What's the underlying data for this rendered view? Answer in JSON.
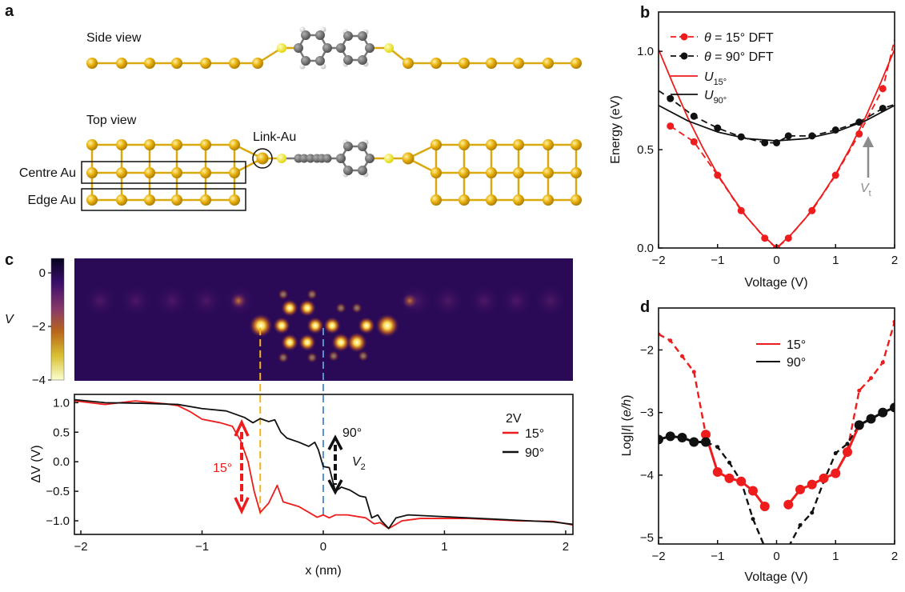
{
  "panel_labels": {
    "a": "a",
    "b": "b",
    "c": "c",
    "d": "d"
  },
  "panel_a": {
    "side_view": "Side view",
    "top_view": "Top view",
    "link_au": "Link-Au",
    "centre_au": "Centre Au",
    "edge_au": "Edge Au"
  },
  "colors": {
    "gold": "#e8b00c",
    "sulfur": "#f2ea2a",
    "carbon": "#6e6e6e",
    "hydrogen": "#e6e6e6",
    "red": "#ee1c1c",
    "black": "#111111",
    "orange_guide": "#f5b21a",
    "blue_guide": "#5b8fd0",
    "arrow_gray": "#8c8c8c"
  },
  "chart_data": [
    {
      "panel": "b",
      "type": "line",
      "xlabel": "Voltage (V)",
      "ylabel": "Energy (eV)",
      "xlim": [
        -2,
        2
      ],
      "ylim": [
        0,
        1.2
      ],
      "xticks": [
        {
          "v": -2,
          "t": "−2"
        },
        {
          "v": -1,
          "t": "−1"
        },
        {
          "v": 0,
          "t": "0"
        },
        {
          "v": 1,
          "t": "1"
        },
        {
          "v": 2,
          "t": "2"
        }
      ],
      "yticks": [
        {
          "v": 0,
          "t": "0.0"
        },
        {
          "v": 0.5,
          "t": "0.5"
        },
        {
          "v": 1,
          "t": "1.0"
        }
      ],
      "legend": [
        {
          "sym": "θ",
          "text": " = 15° DFT",
          "sub": ""
        },
        {
          "sym": "θ",
          "text": " = 90° DFT",
          "sub": ""
        },
        {
          "sym": "U",
          "text": "",
          "sub": "15°"
        },
        {
          "sym": "U",
          "text": "",
          "sub": "90°"
        }
      ],
      "series": [
        {
          "name": "θ = 15° DFT",
          "color": "#ee1c1c",
          "dash": true,
          "marker": 4.5,
          "x": [
            -1.8,
            -1.4,
            -1,
            -0.6,
            -0.2,
            0,
            0.2,
            0.6,
            1,
            1.4,
            1.8,
            2.0
          ],
          "y": [
            0.62,
            0.54,
            0.37,
            0.19,
            0.05,
            0,
            0.05,
            0.19,
            0.37,
            0.58,
            0.81,
            1.06
          ],
          "marker_skip_last": true
        },
        {
          "name": "θ = 90° DFT",
          "color": "#111111",
          "dash": true,
          "marker": 4.5,
          "x": [
            -2,
            -1.8,
            -1.4,
            -1,
            -0.6,
            -0.2,
            0,
            0.2,
            0.6,
            1,
            1.4,
            1.8,
            2.0
          ],
          "y": [
            0.8,
            0.76,
            0.67,
            0.61,
            0.565,
            0.535,
            0.535,
            0.57,
            0.57,
            0.6,
            0.64,
            0.71,
            0.73
          ],
          "marker_skip_first": true,
          "marker_skip_last": true
        },
        {
          "name": "U15°",
          "color": "#ee1c1c",
          "dash": false,
          "marker": 0,
          "x": [
            -2,
            -1.75,
            -1.5,
            -1.25,
            -1,
            -0.75,
            -0.5,
            -0.25,
            0,
            0.25,
            0.5,
            0.75,
            1,
            1.25,
            1.5,
            1.75,
            2
          ],
          "y": [
            1.01,
            0.83,
            0.66,
            0.51,
            0.375,
            0.26,
            0.155,
            0.07,
            0,
            0.07,
            0.155,
            0.26,
            0.375,
            0.51,
            0.66,
            0.83,
            1.01
          ]
        },
        {
          "name": "U90°",
          "color": "#111111",
          "dash": false,
          "marker": 0,
          "x": [
            -2,
            -1.5,
            -1,
            -0.5,
            0,
            0.5,
            1,
            1.5,
            2
          ],
          "y": [
            0.725,
            0.646,
            0.59,
            0.556,
            0.545,
            0.556,
            0.59,
            0.646,
            0.725
          ]
        }
      ],
      "annotation": {
        "sym": "V",
        "sub": "t",
        "x": 1.5,
        "y_from": 0.37,
        "y_to": 0.58
      }
    },
    {
      "panel": "c-colorbar",
      "type": "heatmap",
      "label": "V",
      "range": [
        0.54,
        -4.0
      ],
      "ticks": [
        {
          "v": 0,
          "t": "0"
        },
        {
          "v": -2,
          "t": "−2"
        },
        {
          "v": -4,
          "t": "−4"
        }
      ]
    },
    {
      "panel": "c",
      "type": "line",
      "xlabel": "x (nm)",
      "ylabel": "ΔV (V)",
      "xlim": [
        -2.053,
        2.06
      ],
      "ylim": [
        -1.23,
        1.14
      ],
      "xticks": [
        {
          "v": -2,
          "t": "−2"
        },
        {
          "v": -1,
          "t": "−1"
        },
        {
          "v": 0,
          "t": "0"
        },
        {
          "v": 1,
          "t": "1"
        },
        {
          "v": 2,
          "t": "2"
        }
      ],
      "yticks": [
        {
          "v": 1,
          "t": "1.0"
        },
        {
          "v": 0.5,
          "t": "0.5"
        },
        {
          "v": 0,
          "t": "0.0"
        },
        {
          "v": -0.5,
          "t": "−0.5"
        },
        {
          "v": -1,
          "t": "−1.0"
        }
      ],
      "legend_title": "2V",
      "legend": [
        {
          "text": "15°"
        },
        {
          "text": "90°"
        }
      ],
      "series": [
        {
          "name": "15°",
          "color": "#ee1c1c",
          "x": [
            -2.05,
            -1.8,
            -1.55,
            -1.3,
            -1.2,
            -1.1,
            -1.0,
            -0.85,
            -0.75,
            -0.68,
            -0.62,
            -0.57,
            -0.52,
            -0.45,
            -0.38,
            -0.33,
            -0.2,
            -0.05,
            0.0,
            0.05,
            0.1,
            0.2,
            0.35,
            0.42,
            0.47,
            0.54,
            0.65,
            0.8,
            1.2,
            1.6,
            1.9,
            2.06
          ],
          "y": [
            1.03,
            0.97,
            1.03,
            0.98,
            0.95,
            0.85,
            0.72,
            0.66,
            0.6,
            0.35,
            0.0,
            -0.5,
            -0.86,
            -0.7,
            -0.4,
            -0.68,
            -0.76,
            -0.94,
            -0.9,
            -0.95,
            -0.9,
            -0.9,
            -0.95,
            -1.05,
            -1.03,
            -1.13,
            -1.0,
            -0.96,
            -0.96,
            -1.0,
            -1.01,
            -1.07
          ]
        },
        {
          "name": "90°",
          "color": "#111111",
          "x": [
            -2.05,
            -1.8,
            -1.5,
            -1.2,
            -1.0,
            -0.8,
            -0.65,
            -0.58,
            -0.52,
            -0.45,
            -0.4,
            -0.35,
            -0.3,
            -0.2,
            -0.12,
            -0.07,
            -0.04,
            0.0,
            0.05,
            0.1,
            0.15,
            0.22,
            0.3,
            0.35,
            0.4,
            0.45,
            0.48,
            0.54,
            0.6,
            0.7,
            1.0,
            1.5,
            1.9,
            2.06
          ],
          "y": [
            1.05,
            1.0,
            0.99,
            0.97,
            0.9,
            0.86,
            0.75,
            0.66,
            0.73,
            0.68,
            0.71,
            0.5,
            0.4,
            0.33,
            0.26,
            0.33,
            0.2,
            -0.08,
            -0.1,
            -0.5,
            -0.43,
            -0.48,
            -0.58,
            -0.6,
            -0.95,
            -0.9,
            -1.0,
            -1.13,
            -0.95,
            -0.9,
            -0.93,
            -0.98,
            -1.02,
            -1.06
          ]
        }
      ],
      "annotations": {
        "red_label": "15°",
        "black_label": "90°",
        "v2_sym": "V",
        "v2_sub": "2"
      },
      "guides": [
        {
          "x": -0.52,
          "color": "#f5b21a"
        },
        {
          "x": 0.0,
          "color": "#5b8fd0"
        }
      ]
    },
    {
      "panel": "d",
      "type": "line",
      "xlabel": "Voltage (V)",
      "ylabel_pre": "Log|",
      "ylabel_i": "I",
      "ylabel_mid": "| (",
      "ylabel_unit": "e/h",
      "ylabel_post": ")",
      "xlim": [
        -2,
        2
      ],
      "ylim": [
        -5.1,
        -1.33
      ],
      "xticks": [
        {
          "v": -2,
          "t": "−2"
        },
        {
          "v": -1,
          "t": "−1"
        },
        {
          "v": 0,
          "t": "0"
        },
        {
          "v": 1,
          "t": "1"
        },
        {
          "v": 2,
          "t": "2"
        }
      ],
      "yticks": [
        {
          "v": -2,
          "t": "−2"
        },
        {
          "v": -3,
          "t": "−3"
        },
        {
          "v": -4,
          "t": "−4"
        },
        {
          "v": -5,
          "t": "−5"
        }
      ],
      "legend": [
        {
          "text": "15°"
        },
        {
          "text": "90°"
        }
      ],
      "series": [
        {
          "name": "15°",
          "color": "#ee1c1c",
          "dash": true,
          "marker": 2.5,
          "width": 2.4,
          "x": [
            -2,
            -1.8,
            -1.6,
            -1.4,
            -1.2
          ],
          "y": [
            -1.75,
            -1.85,
            -2.1,
            -2.35,
            -3.35
          ]
        },
        {
          "name": "15°",
          "color": "#ee1c1c",
          "dash": true,
          "marker": 2.5,
          "width": 2.4,
          "x": [
            1.2,
            1.4,
            1.6,
            1.8,
            2.0
          ],
          "y": [
            -3.6,
            -2.65,
            -2.45,
            -2.2,
            -1.55
          ]
        },
        {
          "name": "90°",
          "color": "#111111",
          "dash": true,
          "marker": 2.5,
          "width": 2.4,
          "x": [
            -1.2,
            -1.0,
            -0.8,
            -0.6,
            -0.4,
            -0.2
          ],
          "y": [
            -3.47,
            -3.55,
            -3.8,
            -4.1,
            -4.7,
            -5.15
          ]
        },
        {
          "name": "90°",
          "color": "#111111",
          "dash": true,
          "marker": 2.5,
          "width": 2.4,
          "x": [
            0.2,
            0.4,
            0.6,
            0.8,
            1.0,
            1.2,
            1.4
          ],
          "y": [
            -5.15,
            -4.8,
            -4.6,
            -4.1,
            -3.65,
            -3.5,
            -3.2
          ]
        },
        {
          "name": "15°",
          "color": "#ee1c1c",
          "dash": false,
          "marker": 6,
          "width": 3,
          "x": [
            -1.2,
            -1.0,
            -0.8,
            -0.6,
            -0.4,
            -0.2
          ],
          "y": [
            -3.35,
            -3.95,
            -4.05,
            -4.1,
            -4.25,
            -4.5
          ]
        },
        {
          "name": "15°",
          "color": "#ee1c1c",
          "dash": false,
          "marker": 6,
          "width": 3,
          "x": [
            0.2,
            0.4,
            0.6,
            0.8,
            1.0,
            1.2,
            1.4
          ],
          "y": [
            -4.47,
            -4.23,
            -4.15,
            -4.05,
            -3.97,
            -3.63,
            -3.2
          ]
        },
        {
          "name": "90°",
          "color": "#111111",
          "dash": false,
          "marker": 6,
          "width": 3,
          "x": [
            -2,
            -1.8,
            -1.6,
            -1.4,
            -1.2
          ],
          "y": [
            -3.43,
            -3.38,
            -3.4,
            -3.47,
            -3.47
          ]
        },
        {
          "name": "90°",
          "color": "#111111",
          "dash": false,
          "marker": 6,
          "width": 3,
          "x": [
            1.4,
            1.6,
            1.8,
            2.0
          ],
          "y": [
            -3.2,
            -3.1,
            -3.0,
            -2.92
          ]
        }
      ]
    }
  ]
}
